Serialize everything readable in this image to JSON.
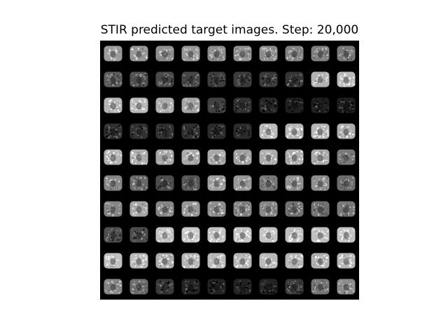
{
  "figure": {
    "title": "STIR predicted target images. Step: 20,000"
  },
  "mosaic": {
    "rows": 10,
    "cols": 10,
    "tile_brightness": [
      [
        0.72,
        0.7,
        0.66,
        0.7,
        0.64,
        0.66,
        0.64,
        0.6,
        0.58,
        0.56
      ],
      [
        0.42,
        0.36,
        0.34,
        0.32,
        0.28,
        0.28,
        0.26,
        0.24,
        0.82,
        0.86
      ],
      [
        0.84,
        0.86,
        0.8,
        0.76,
        0.3,
        0.22,
        0.18,
        0.14,
        0.14,
        0.14
      ],
      [
        0.22,
        0.22,
        0.22,
        0.22,
        0.2,
        0.2,
        0.86,
        0.84,
        0.84,
        0.8
      ],
      [
        0.82,
        0.8,
        0.76,
        0.78,
        0.78,
        0.74,
        0.8,
        0.8,
        0.78,
        0.56
      ],
      [
        0.62,
        0.48,
        0.36,
        0.4,
        0.74,
        0.7,
        0.56,
        0.66,
        0.66,
        0.5
      ],
      [
        0.62,
        0.76,
        0.62,
        0.7,
        0.66,
        0.6,
        0.62,
        0.52,
        0.52,
        0.56
      ],
      [
        0.36,
        0.36,
        0.9,
        0.92,
        0.9,
        0.9,
        0.9,
        0.88,
        0.88,
        0.9
      ],
      [
        0.88,
        0.86,
        0.8,
        0.84,
        0.86,
        0.84,
        0.86,
        0.84,
        0.82,
        0.84
      ],
      [
        0.62,
        0.5,
        0.26,
        0.16,
        0.16,
        0.16,
        0.16,
        0.26,
        0.54,
        0.64
      ]
    ]
  }
}
